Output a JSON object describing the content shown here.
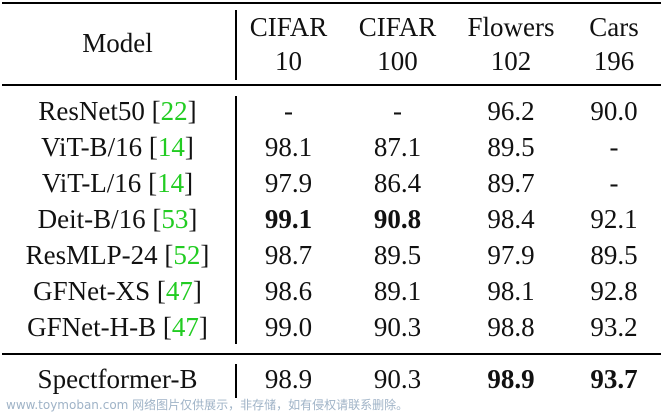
{
  "header": {
    "model": "Model",
    "cols": [
      {
        "line1": "CIFAR",
        "line2": "10"
      },
      {
        "line1": "CIFAR",
        "line2": "100"
      },
      {
        "line1": "Flowers",
        "line2": "102"
      },
      {
        "line1": "Cars",
        "line2": "196"
      }
    ]
  },
  "rows": [
    {
      "name": "ResNet50 ",
      "cite": "22",
      "v": [
        "-",
        "-",
        "96.2",
        "90.0"
      ]
    },
    {
      "name": "ViT-B/16 ",
      "cite": "14",
      "v": [
        "98.1",
        "87.1",
        "89.5",
        "-"
      ]
    },
    {
      "name": "ViT-L/16 ",
      "cite": "14",
      "v": [
        "97.9",
        "86.4",
        "89.7",
        "-"
      ]
    },
    {
      "name": "Deit-B/16 ",
      "cite": "53",
      "v": [
        "99.1",
        "90.8",
        "98.4",
        "92.1"
      ]
    },
    {
      "name": "ResMLP-24 ",
      "cite": "52",
      "v": [
        "98.7",
        "89.5",
        "97.9",
        "89.5"
      ]
    },
    {
      "name": "GFNet-XS ",
      "cite": "47",
      "v": [
        "98.6",
        "89.1",
        "98.1",
        "92.8"
      ]
    },
    {
      "name": "GFNet-H-B ",
      "cite": "47",
      "v": [
        "99.0",
        "90.3",
        "98.8",
        "93.2"
      ]
    }
  ],
  "final_row": {
    "name": "Spectformer-B",
    "v": [
      "98.9",
      "90.3",
      "98.9",
      "93.7"
    ]
  },
  "watermark": "www.toymoban.com 网络图片仅供展示，非存储，如有侵权请联系删除。"
}
